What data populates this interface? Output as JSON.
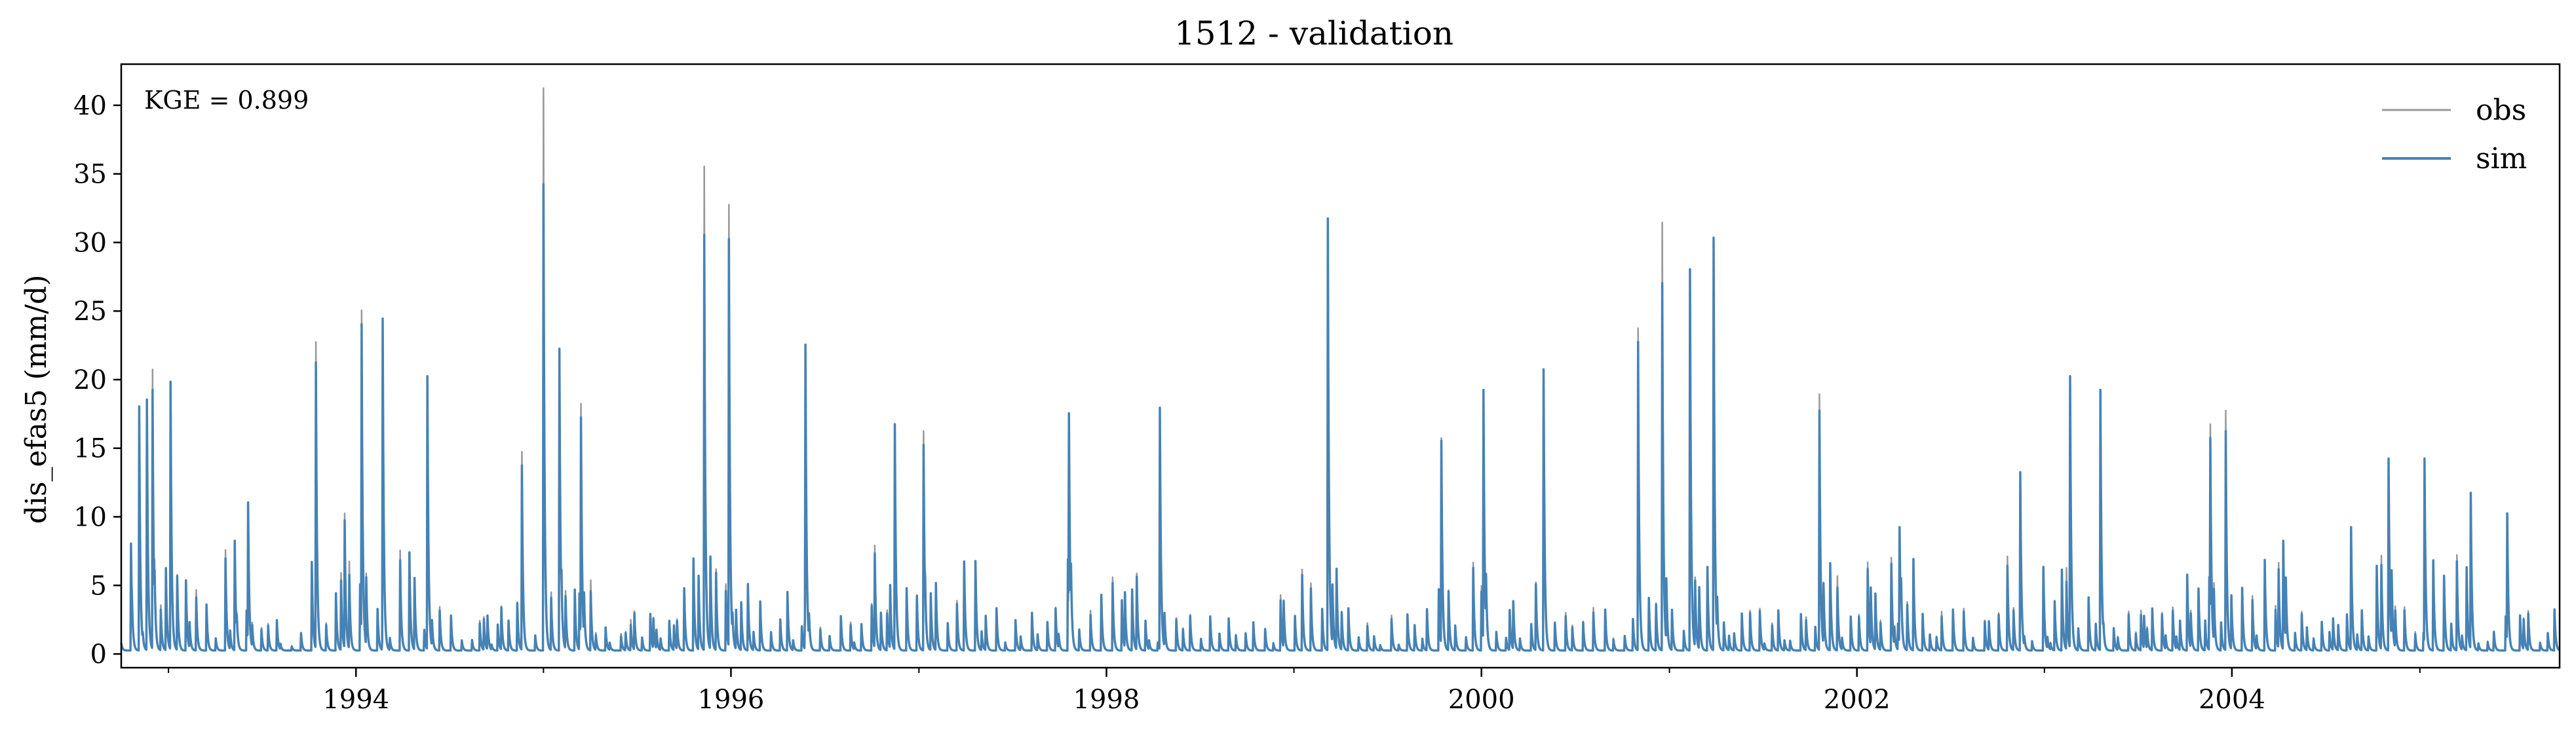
{
  "chart_data": {
    "type": "line",
    "title": "1512 - validation",
    "xlabel": "",
    "ylabel": "dis_efas5 (mm/d)",
    "xlim": [
      "1992-10-01",
      "2005-09-30"
    ],
    "ylim": [
      -1,
      43
    ],
    "y_ticks": [
      0,
      5,
      10,
      15,
      20,
      25,
      30,
      35,
      40
    ],
    "x_tick_labels": [
      "1994",
      "1996",
      "1998",
      "2000",
      "2002",
      "2004"
    ],
    "x_ticks": [
      "1994-01-01",
      "1996-01-01",
      "1998-01-01",
      "2000-01-01",
      "2002-01-01",
      "2004-01-01"
    ],
    "annotation": "KGE = 0.899",
    "legend_position": "top-right",
    "grid": false,
    "series": [
      {
        "name": "obs",
        "color": "#999999",
        "points": [
          [
            "1992-10-01",
            0.5
          ],
          [
            "1992-10-20",
            7.0
          ],
          [
            "1992-11-05",
            17.0
          ],
          [
            "1992-11-20",
            18.0
          ],
          [
            "1992-12-01",
            20.5
          ],
          [
            "1993-01-05",
            19.5
          ],
          [
            "1993-03-01",
            0.5
          ],
          [
            "1993-05-10",
            8.0
          ],
          [
            "1993-06-05",
            10.8
          ],
          [
            "1993-10-15",
            22.5
          ],
          [
            "1993-12-10",
            10.0
          ],
          [
            "1994-01-12",
            24.8
          ],
          [
            "1994-02-22",
            24.2
          ],
          [
            "1994-05-20",
            20.0
          ],
          [
            "1994-11-20",
            14.5
          ],
          [
            "1995-01-01",
            41.0
          ],
          [
            "1995-02-01",
            22.0
          ],
          [
            "1995-03-15",
            18.0
          ],
          [
            "1995-11-10",
            35.3
          ],
          [
            "1995-12-28",
            32.5
          ],
          [
            "1996-05-25",
            22.3
          ],
          [
            "1996-11-15",
            16.5
          ],
          [
            "1997-01-10",
            16.0
          ],
          [
            "1997-10-20",
            17.3
          ],
          [
            "1998-04-15",
            17.7
          ],
          [
            "1999-03-08",
            31.5
          ],
          [
            "1999-10-15",
            15.5
          ],
          [
            "2000-01-05",
            19.0
          ],
          [
            "2000-05-01",
            20.5
          ],
          [
            "2000-11-01",
            23.5
          ],
          [
            "2000-12-18",
            31.2
          ],
          [
            "2001-02-10",
            27.8
          ],
          [
            "2001-03-28",
            30.0
          ],
          [
            "2001-10-20",
            18.7
          ],
          [
            "2002-03-25",
            9.0
          ],
          [
            "2002-11-15",
            13.0
          ],
          [
            "2003-02-20",
            20.0
          ],
          [
            "2003-04-20",
            19.0
          ],
          [
            "2003-11-20",
            16.5
          ],
          [
            "2003-12-20",
            17.5
          ],
          [
            "2004-04-10",
            8.0
          ],
          [
            "2004-08-20",
            9.0
          ],
          [
            "2004-11-01",
            14.0
          ],
          [
            "2005-01-10",
            14.0
          ],
          [
            "2005-04-10",
            11.5
          ],
          [
            "2005-06-20",
            10.0
          ],
          [
            "2005-09-20",
            3.0
          ]
        ]
      },
      {
        "name": "sim",
        "color": "#4682b4",
        "points": [
          [
            "1992-10-01",
            0.4
          ],
          [
            "1992-10-20",
            7.8
          ],
          [
            "1992-11-05",
            17.8
          ],
          [
            "1992-11-20",
            18.3
          ],
          [
            "1992-12-01",
            19.0
          ],
          [
            "1993-01-05",
            19.6
          ],
          [
            "1993-03-01",
            0.4
          ],
          [
            "1993-05-10",
            8.0
          ],
          [
            "1993-06-05",
            10.8
          ],
          [
            "1993-10-15",
            21.0
          ],
          [
            "1993-12-10",
            9.5
          ],
          [
            "1994-01-12",
            23.8
          ],
          [
            "1994-02-22",
            24.2
          ],
          [
            "1994-05-20",
            20.0
          ],
          [
            "1994-11-20",
            13.5
          ],
          [
            "1995-01-01",
            34.0
          ],
          [
            "1995-02-01",
            22.0
          ],
          [
            "1995-03-15",
            17.0
          ],
          [
            "1995-11-10",
            30.3
          ],
          [
            "1995-12-28",
            30.0
          ],
          [
            "1996-05-25",
            22.3
          ],
          [
            "1996-11-15",
            16.5
          ],
          [
            "1997-01-10",
            15.0
          ],
          [
            "1997-10-20",
            17.3
          ],
          [
            "1998-04-15",
            17.7
          ],
          [
            "1999-03-08",
            31.5
          ],
          [
            "1999-10-15",
            15.3
          ],
          [
            "2000-01-05",
            19.0
          ],
          [
            "2000-05-01",
            20.5
          ],
          [
            "2000-11-01",
            22.5
          ],
          [
            "2000-12-18",
            26.8
          ],
          [
            "2001-02-10",
            27.8
          ],
          [
            "2001-03-28",
            30.1
          ],
          [
            "2001-10-20",
            17.5
          ],
          [
            "2002-03-25",
            9.0
          ],
          [
            "2002-11-15",
            13.0
          ],
          [
            "2003-02-20",
            20.0
          ],
          [
            "2003-04-20",
            19.0
          ],
          [
            "2003-11-20",
            15.5
          ],
          [
            "2003-12-20",
            16.0
          ],
          [
            "2004-04-10",
            8.0
          ],
          [
            "2004-08-20",
            9.0
          ],
          [
            "2004-11-01",
            14.0
          ],
          [
            "2005-01-10",
            14.0
          ],
          [
            "2005-04-10",
            11.5
          ],
          [
            "2005-06-20",
            10.0
          ],
          [
            "2005-09-20",
            3.0
          ]
        ]
      }
    ]
  }
}
